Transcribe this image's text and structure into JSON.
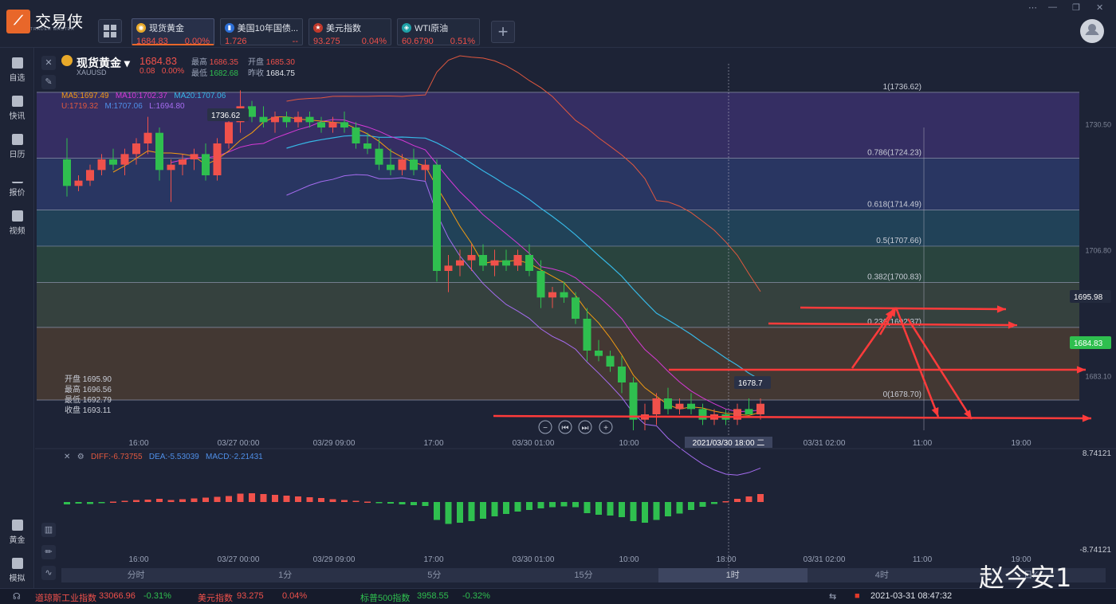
{
  "app": {
    "name": "交易侠",
    "subtitle": "TRADER MASTER"
  },
  "tabs": [
    {
      "name": "现货黄金",
      "price": "1684.83",
      "change": "0.00%",
      "price_color": "red",
      "icon": "gold-coin-icon"
    },
    {
      "name": "美国10年国债...",
      "price": "1.726",
      "change": "--",
      "price_color": "red",
      "icon": "bar-chart-icon"
    },
    {
      "name": "美元指数",
      "price": "93.275",
      "change": "0.04%",
      "price_color": "red",
      "icon": "us-flag-icon"
    },
    {
      "name": "WTI原油",
      "price": "60.6790",
      "change": "0.51%",
      "price_color": "red",
      "icon": "oil-icon"
    }
  ],
  "sidebar": [
    {
      "label": "自选",
      "icon": "bookmark-icon"
    },
    {
      "label": "快讯",
      "icon": "news-icon"
    },
    {
      "label": "日历",
      "icon": "calendar-icon"
    },
    {
      "label": "报价",
      "icon": "quote-chart-icon"
    },
    {
      "label": "视频",
      "icon": "video-icon"
    },
    {
      "label": "黄金",
      "icon": "gold-icon"
    },
    {
      "label": "模拟",
      "icon": "wallet-icon"
    }
  ],
  "instrument": {
    "name": "现货黄金",
    "code": "XAUUSD",
    "price": "1684.83",
    "change": "0.08",
    "change_pct": "0.00%",
    "high_label": "最高",
    "high": "1686.35",
    "open_label": "开盘",
    "open": "1685.30",
    "low_label": "最低",
    "low": "1682.68",
    "prev_label": "昨收",
    "prev": "1684.75"
  },
  "indicators": {
    "ma5": "MA5:1697.49",
    "ma10": "MA10:1702.37",
    "ma20": "MA20:1707.06",
    "bb_u": "U:1719.32",
    "bb_m": "M:1707.06",
    "bb_l": "L:1694.80"
  },
  "ohlc_box": {
    "open": "开盘 1695.90",
    "high": "最高 1696.56",
    "low": "最低 1692.79",
    "close": "收盘 1693.11"
  },
  "macd": {
    "diff": "DIFF:-6.73755",
    "dea": "DEA:-5.53039",
    "macd": "MACD:-2.21431",
    "top": "8.74121",
    "bottom": "-8.74121"
  },
  "chart_data": {
    "type": "candlestick",
    "ylim": [
      1673,
      1742
    ],
    "right_axis_ticks": [
      "1730.50",
      "1706.80",
      "1683.10"
    ],
    "fib_levels": [
      {
        "label": "1(1736.62)",
        "value": 1736.62
      },
      {
        "label": "0.786(1724.23)",
        "value": 1724.23
      },
      {
        "label": "0.618(1714.49)",
        "value": 1714.49
      },
      {
        "label": "0.5(1707.66)",
        "value": 1707.66
      },
      {
        "label": "0.382(1700.83)",
        "value": 1700.83
      },
      {
        "label": "0.236(1692.37)",
        "value": 1692.37
      },
      {
        "label": "0(1678.70)",
        "value": 1678.7
      }
    ],
    "x_ticks": [
      "16:00",
      "03/27 00:00",
      "03/29 09:00",
      "17:00",
      "03/30 01:00",
      "10:00",
      "18:00",
      "03/31 02:00",
      "11:00",
      "19:00"
    ],
    "crosshair_time": "2021/03/30 18:00 二",
    "high_marker": "1736.62",
    "low_marker": "1678.7",
    "price_marker": "1684.83",
    "alert_marker": "1695.98",
    "candles": [
      [
        1724,
        1728,
        1717,
        1719
      ],
      [
        1719,
        1721,
        1718,
        1720
      ],
      [
        1720,
        1723,
        1719,
        1722
      ],
      [
        1722,
        1725,
        1721,
        1724
      ],
      [
        1724,
        1726,
        1722,
        1723
      ],
      [
        1723,
        1726,
        1721,
        1725
      ],
      [
        1725,
        1728,
        1723,
        1727
      ],
      [
        1727,
        1732,
        1725,
        1729
      ],
      [
        1729,
        1730,
        1720,
        1722
      ],
      [
        1722,
        1724,
        1716,
        1723
      ],
      [
        1723,
        1725,
        1721,
        1724
      ],
      [
        1724,
        1726,
        1722,
        1725
      ],
      [
        1725,
        1727,
        1720,
        1721
      ],
      [
        1721,
        1728,
        1720,
        1727
      ],
      [
        1727,
        1732,
        1726,
        1731
      ],
      [
        1731,
        1737,
        1729,
        1734
      ],
      [
        1734,
        1735,
        1731,
        1732
      ],
      [
        1732,
        1734,
        1730,
        1731
      ],
      [
        1731,
        1733,
        1729,
        1732
      ],
      [
        1732,
        1733,
        1730,
        1731
      ],
      [
        1731,
        1733,
        1730,
        1732
      ],
      [
        1732,
        1733,
        1730,
        1731
      ],
      [
        1731,
        1732,
        1729,
        1730
      ],
      [
        1730,
        1732,
        1729,
        1731
      ],
      [
        1731,
        1733,
        1729,
        1730
      ],
      [
        1730,
        1731,
        1726,
        1727
      ],
      [
        1727,
        1729,
        1725,
        1726
      ],
      [
        1726,
        1728,
        1722,
        1723
      ],
      [
        1723,
        1726,
        1721,
        1722
      ],
      [
        1722,
        1725,
        1721,
        1724
      ],
      [
        1724,
        1726,
        1721,
        1722
      ],
      [
        1722,
        1724,
        1720,
        1723
      ],
      [
        1723,
        1724,
        1701,
        1703
      ],
      [
        1703,
        1706,
        1699,
        1704
      ],
      [
        1704,
        1707,
        1702,
        1705
      ],
      [
        1705,
        1708,
        1703,
        1706
      ],
      [
        1706,
        1708,
        1703,
        1704
      ],
      [
        1704,
        1707,
        1702,
        1705
      ],
      [
        1705,
        1707,
        1703,
        1704
      ],
      [
        1704,
        1707,
        1703,
        1706
      ],
      [
        1706,
        1708,
        1702,
        1703
      ],
      [
        1703,
        1705,
        1696,
        1698
      ],
      [
        1698,
        1700,
        1696,
        1699
      ],
      [
        1699,
        1701,
        1697,
        1698
      ],
      [
        1698,
        1699,
        1693,
        1694
      ],
      [
        1694,
        1696,
        1686,
        1688
      ],
      [
        1688,
        1690,
        1686,
        1687
      ],
      [
        1687,
        1688,
        1684,
        1685
      ],
      [
        1685,
        1687,
        1680,
        1682
      ],
      [
        1682,
        1683,
        1673,
        1675
      ],
      [
        1675,
        1678,
        1673,
        1676
      ],
      [
        1676,
        1680,
        1674,
        1679
      ],
      [
        1679,
        1681,
        1676,
        1677
      ],
      [
        1677,
        1679,
        1676,
        1678
      ],
      [
        1678,
        1680,
        1676,
        1677
      ],
      [
        1677,
        1678,
        1674,
        1675
      ],
      [
        1675,
        1677,
        1674,
        1676
      ],
      [
        1676,
        1677,
        1674,
        1675
      ],
      [
        1675,
        1678,
        1674,
        1677
      ],
      [
        1677,
        1679,
        1676,
        1676
      ],
      [
        1676,
        1679,
        1675,
        1678
      ]
    ],
    "macd_hist": [
      -0.6,
      -0.4,
      -0.5,
      -0.2,
      0.1,
      0.3,
      0.5,
      0.6,
      0.8,
      0.5,
      0.7,
      0.9,
      1.1,
      1.3,
      1.5,
      2.1,
      2.2,
      2.0,
      1.8,
      1.6,
      1.4,
      1.2,
      1.0,
      0.7,
      0.5,
      0.3,
      0.1,
      -0.2,
      -0.4,
      -0.6,
      -0.8,
      -1.0,
      -4.5,
      -5.5,
      -5.2,
      -4.8,
      -4.2,
      -3.6,
      -3.0,
      -2.4,
      -2.0,
      -1.6,
      -1.3,
      -1.1,
      -1.3,
      -2.8,
      -3.2,
      -3.4,
      -3.8,
      -4.8,
      -5.2,
      -4.5,
      -3.6,
      -2.9,
      -2.0,
      -1.2,
      -0.5,
      0.2,
      0.8,
      1.4,
      2.0
    ]
  },
  "periods": [
    "分时",
    "1分",
    "5分",
    "15分",
    "1时",
    "4时",
    "日K"
  ],
  "period_selected": "1时",
  "status": {
    "dji_label": "道琼斯工业指数",
    "dji": "33066.96",
    "dji_chg": "-0.31%",
    "dxy_label": "美元指数",
    "dxy": "93.275",
    "dxy_chg": "0.04%",
    "spx_label": "标普500指数",
    "spx": "3958.55",
    "spx_chg": "-0.32%",
    "datetime": "2021-03-31 08:47:32"
  },
  "watermark": "赵今安1",
  "colors": {
    "up": "#f0514b",
    "down": "#2fbf4f",
    "accent": "#e8672a",
    "arrow": "#ff3b3b"
  }
}
